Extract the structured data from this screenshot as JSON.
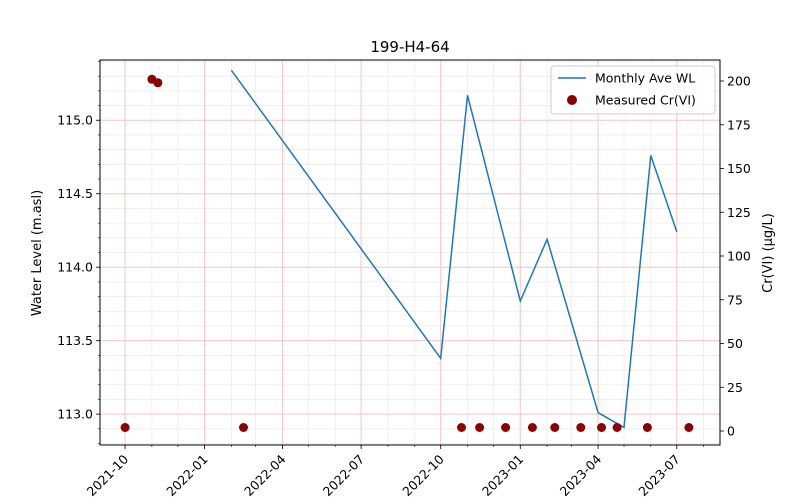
{
  "chart_data": {
    "type": "line",
    "title": "199-H4-64",
    "ylabel": "Water Level (m.asl)",
    "y2label": "Cr(VI) (µg/L)",
    "ylim": [
      112.79,
      115.41
    ],
    "y2lim": [
      -8,
      212
    ],
    "xlim": [
      "2021-09-02",
      "2023-08-20"
    ],
    "yticks": [
      113.0,
      113.5,
      114.0,
      114.5,
      115.0
    ],
    "ytick_labels": [
      "113.0",
      "113.5",
      "114.0",
      "114.5",
      "115.0"
    ],
    "y2ticks": [
      0,
      25,
      50,
      75,
      100,
      125,
      150,
      175,
      200
    ],
    "y2tick_labels": [
      "0",
      "25",
      "50",
      "75",
      "100",
      "125",
      "150",
      "175",
      "200"
    ],
    "xticks": [
      "2021-10-01",
      "2022-01-01",
      "2022-04-01",
      "2022-07-01",
      "2022-10-01",
      "2023-01-01",
      "2023-04-01",
      "2023-07-01"
    ],
    "xtick_labels": [
      "2021-10",
      "2022-01",
      "2022-04",
      "2022-07",
      "2022-10",
      "2023-01",
      "2023-04",
      "2023-07"
    ],
    "grid": true,
    "legend_position": "top-right",
    "series": [
      {
        "name": "Monthly Ave WL",
        "type": "line",
        "axis": "left",
        "color": "#1f77b4",
        "x": [
          "2022-02-01",
          "2022-10-01",
          "2022-11-01",
          "2023-01-01",
          "2023-02-01",
          "2023-04-01",
          "2023-05-01",
          "2023-06-01",
          "2023-07-01"
        ],
        "y": [
          115.34,
          113.38,
          115.17,
          113.77,
          114.19,
          113.01,
          112.91,
          114.76,
          114.24
        ]
      },
      {
        "name": "Measured Cr(VI)",
        "type": "scatter",
        "axis": "right",
        "color": "#8b0000",
        "x": [
          "2021-10-01",
          "2021-11-01",
          "2021-11-08",
          "2022-02-15",
          "2022-10-25",
          "2022-11-15",
          "2022-12-15",
          "2023-01-15",
          "2023-02-10",
          "2023-03-12",
          "2023-04-05",
          "2023-04-23",
          "2023-05-28",
          "2023-07-15"
        ],
        "y": [
          2,
          201,
          199,
          2,
          2,
          2,
          2,
          2,
          2,
          2,
          2,
          2,
          2,
          2
        ]
      }
    ]
  }
}
